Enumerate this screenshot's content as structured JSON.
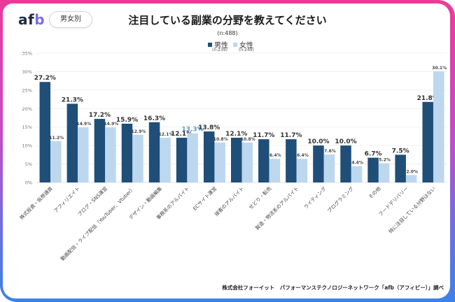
{
  "header": {
    "logo": {
      "a": "a",
      "f": "f",
      "b": "b"
    },
    "tag": "男女別",
    "title": "注目している副業の分野を教えてください",
    "n_total": "(n:488)"
  },
  "colors": {
    "male": "#1f4e79",
    "female": "#bdd7ee",
    "highlight_label": "#5b9bd5",
    "label_text": "#333333",
    "grid": "#ececec"
  },
  "footer": "株式会社フォーイット　パフォーマンステクノロジーネットワーク「afb（アフィビー）」調べ",
  "chart_data": {
    "type": "bar",
    "title": "注目している副業の分野を教えてください",
    "subtitle": "(n:488)",
    "xlabel": "",
    "ylabel": "",
    "ylim": [
      0,
      35
    ],
    "yticks": [
      0,
      5,
      10,
      15,
      20,
      25,
      30,
      35
    ],
    "ytick_labels": [
      "0%",
      "5%",
      "10%",
      "15%",
      "20%",
      "25%",
      "30%",
      "35%"
    ],
    "grid": true,
    "legend": "top-center",
    "categories": [
      "株式投資・仮想通貨",
      "アフィリエイト",
      "ブログ・SNS運営",
      "動画配信・ライブ配信（YouTuber、Vtuber）",
      "デザイン・動画編集",
      "事務系のアルバイト",
      "ECサイト運営",
      "接客のアルバイト",
      "せどり・転売",
      "製造・物流系のアルバイト",
      "ライティング",
      "プログラミング",
      "その他",
      "フードデリバリー",
      "特に注目している分野はない"
    ],
    "series": [
      {
        "name": "男性",
        "n": "(n:239)",
        "values": [
          27.2,
          21.3,
          17.2,
          15.9,
          16.3,
          12.1,
          13.8,
          12.1,
          11.7,
          11.7,
          10.0,
          10.0,
          6.7,
          7.5,
          21.8
        ],
        "labels": [
          "27.2%",
          "21.3%",
          "17.2%",
          "15.9%",
          "16.3%",
          "12.1%",
          "13.8%",
          "12.1%",
          "11.7%",
          "11.7%",
          "10.0%",
          "10.0%",
          "6.7%",
          "7.5%",
          "21.8%"
        ]
      },
      {
        "name": "女性",
        "n": "(n:249)",
        "values": [
          11.2,
          14.9,
          14.9,
          12.9,
          12.1,
          13.3,
          10.8,
          10.8,
          6.4,
          6.4,
          7.6,
          4.4,
          5.2,
          2.0,
          30.1
        ],
        "labels": [
          "11.2%",
          "14.9%",
          "14.9%",
          "12.9%",
          "12.1%",
          "13.3%",
          "10.8%",
          "10.8%",
          "6.4%",
          "6.4%",
          "7.6%",
          "4.4%",
          "5.2%",
          "2.0%",
          "30.1%"
        ]
      }
    ],
    "highlighted_labels": [
      {
        "series": "女性",
        "category": "事務系のアルバイト"
      }
    ]
  }
}
